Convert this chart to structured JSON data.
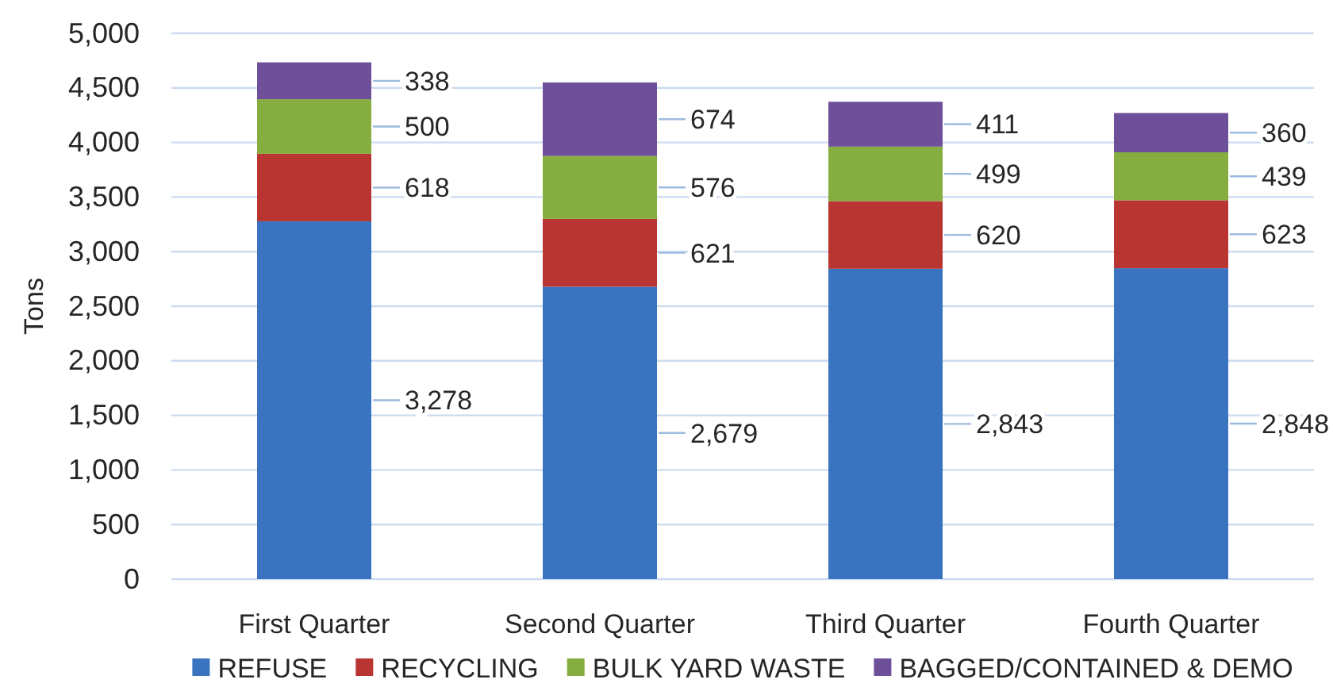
{
  "chart_data": {
    "type": "bar",
    "stacked": true,
    "ylabel": "Tons",
    "categories": [
      "First Quarter",
      "Second Quarter",
      "Third Quarter",
      "Fourth Quarter"
    ],
    "series": [
      {
        "name": "REFUSE",
        "color": "#3a74c1",
        "values": [
          3278,
          2679,
          2843,
          2848
        ],
        "value_labels": [
          "3,278",
          "2,679",
          "2,843",
          "2,848"
        ]
      },
      {
        "name": "RECYCLING",
        "color": "#b83532",
        "values": [
          618,
          621,
          620,
          623
        ],
        "value_labels": [
          "618",
          "621",
          "620",
          "623"
        ]
      },
      {
        "name": "BULK YARD WASTE",
        "color": "#86ad3f",
        "values": [
          500,
          576,
          499,
          439
        ],
        "value_labels": [
          "500",
          "576",
          "499",
          "439"
        ]
      },
      {
        "name": "BAGGED/CONTAINED & DEMO",
        "color": "#6e4f9a",
        "values": [
          338,
          674,
          411,
          360
        ],
        "value_labels": [
          "338",
          "674",
          "411",
          "360"
        ]
      }
    ],
    "ylim": [
      0,
      5000
    ],
    "yticks": [
      0,
      500,
      {
        "value": 1000,
        "label": "1,000"
      },
      {
        "value": 1500,
        "label": "1,500"
      },
      {
        "value": 2000,
        "label": "2,000"
      },
      {
        "value": 2500,
        "label": "2,500"
      },
      {
        "value": 3000,
        "label": "3,000"
      },
      {
        "value": 3500,
        "label": "3,500"
      },
      {
        "value": 4000,
        "label": "4,000"
      },
      {
        "value": 4500,
        "label": "4,500"
      },
      {
        "value": 5000,
        "label": "5,000"
      }
    ],
    "grid": "y",
    "legend": "bottom"
  }
}
